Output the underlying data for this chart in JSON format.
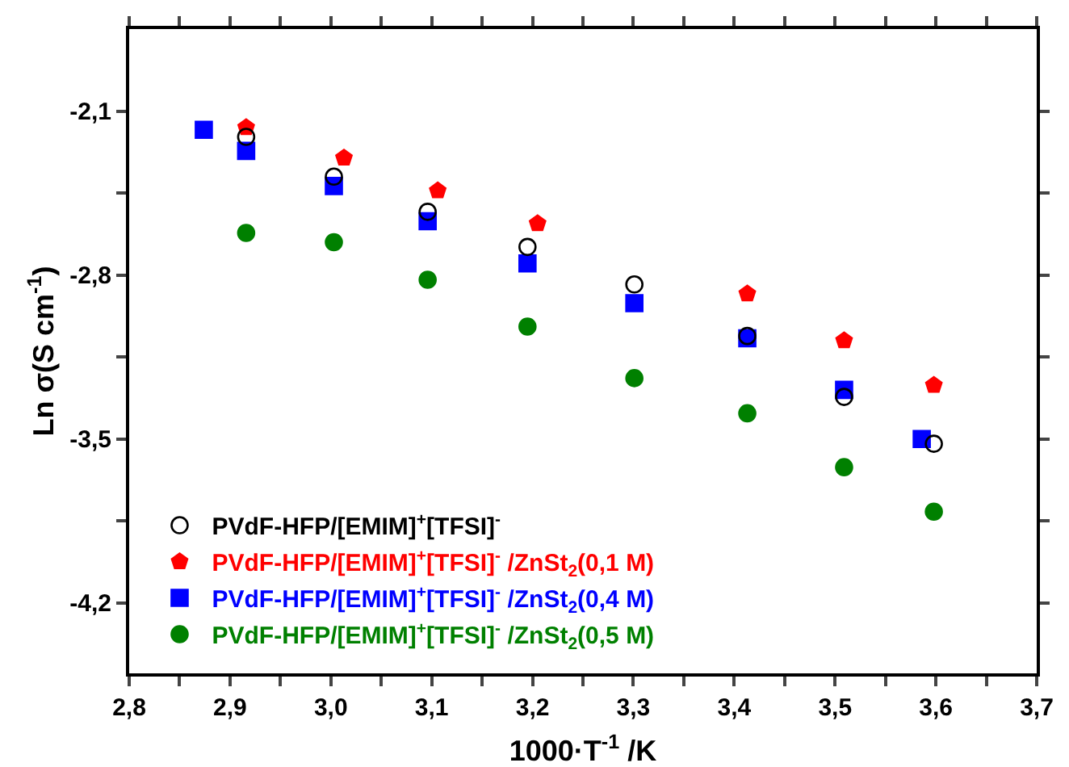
{
  "chart_data": {
    "type": "scatter",
    "xlabel": "1000·T$^{-1}$ /K",
    "ylabel": "Ln σ(S cm$^{-1}$)",
    "xlim": [
      2.8,
      3.7
    ],
    "ylim": [
      -4.5,
      -1.75
    ],
    "xticks": [
      {
        "value": 2.8,
        "label": "2,8"
      },
      {
        "value": 2.85,
        "label": null
      },
      {
        "value": 2.9,
        "label": "2,9"
      },
      {
        "value": 2.95,
        "label": null
      },
      {
        "value": 3.0,
        "label": "3,0"
      },
      {
        "value": 3.05,
        "label": null
      },
      {
        "value": 3.1,
        "label": "3,1"
      },
      {
        "value": 3.15,
        "label": null
      },
      {
        "value": 3.2,
        "label": "3,2"
      },
      {
        "value": 3.25,
        "label": null
      },
      {
        "value": 3.3,
        "label": "3,3"
      },
      {
        "value": 3.35,
        "label": null
      },
      {
        "value": 3.4,
        "label": "3,4"
      },
      {
        "value": 3.45,
        "label": null
      },
      {
        "value": 3.5,
        "label": "3,5"
      },
      {
        "value": 3.55,
        "label": null
      },
      {
        "value": 3.6,
        "label": "3,6"
      },
      {
        "value": 3.65,
        "label": null
      },
      {
        "value": 3.7,
        "label": "3,7"
      }
    ],
    "yticks": [
      {
        "value": -2.1,
        "label": "-2,1"
      },
      {
        "value": -2.45,
        "label": null
      },
      {
        "value": -2.8,
        "label": "-2,8"
      },
      {
        "value": -3.15,
        "label": null
      },
      {
        "value": -3.5,
        "label": "-3,5"
      },
      {
        "value": -3.85,
        "label": null
      },
      {
        "value": -4.2,
        "label": "-4,2"
      }
    ],
    "grid": false,
    "legend": "bottom left",
    "series": [
      {
        "name": "PVdF-HFP/[EMIM]$^{+}$[TFSI]$^{-}$",
        "color": "#000000",
        "marker": "circle-open",
        "x": [
          2.916,
          3.003,
          3.096,
          3.195,
          3.301,
          3.413,
          3.509,
          3.598
        ],
        "values": [
          -2.21,
          -2.38,
          -2.53,
          -2.68,
          -2.84,
          -3.06,
          -3.32,
          -3.52
        ]
      },
      {
        "name": "PVdF-HFP/[EMIM]$^{+}$[TFSI]$^{-}$ /ZnSt$_{2}$(0,1 M)",
        "color": "#ff0000",
        "x": [
          2.916,
          3.013,
          3.106,
          3.205,
          3.413,
          3.509,
          3.598
        ],
        "values": [
          -2.17,
          -2.3,
          -2.44,
          -2.58,
          -2.88,
          -3.08,
          -3.27
        ]
      },
      {
        "name": "PVdF-HFP/[EMIM]$^{+}$[TFSI]$^{-}$ /ZnSt$_{2}$(0,4 M)",
        "color": "#0000ff",
        "marker": "square",
        "x": [
          2.874,
          2.916,
          3.003,
          3.096,
          3.195,
          3.301,
          3.413,
          3.509,
          3.586
        ],
        "values": [
          -2.18,
          -2.27,
          -2.42,
          -2.57,
          -2.75,
          -2.92,
          -3.07,
          -3.29,
          -3.5
        ]
      },
      {
        "name": "PVdF-HFP/[EMIM]$^{+}$[TFSI]$^{-}$ /ZnSt$_{2}$(0,5 M)",
        "color": "#008000",
        "marker": "circle",
        "x": [
          2.916,
          3.003,
          3.096,
          3.195,
          3.301,
          3.413,
          3.509,
          3.598
        ],
        "values": [
          -2.62,
          -2.66,
          -2.82,
          -3.02,
          -3.24,
          -3.39,
          -3.62,
          -3.81
        ]
      }
    ]
  }
}
